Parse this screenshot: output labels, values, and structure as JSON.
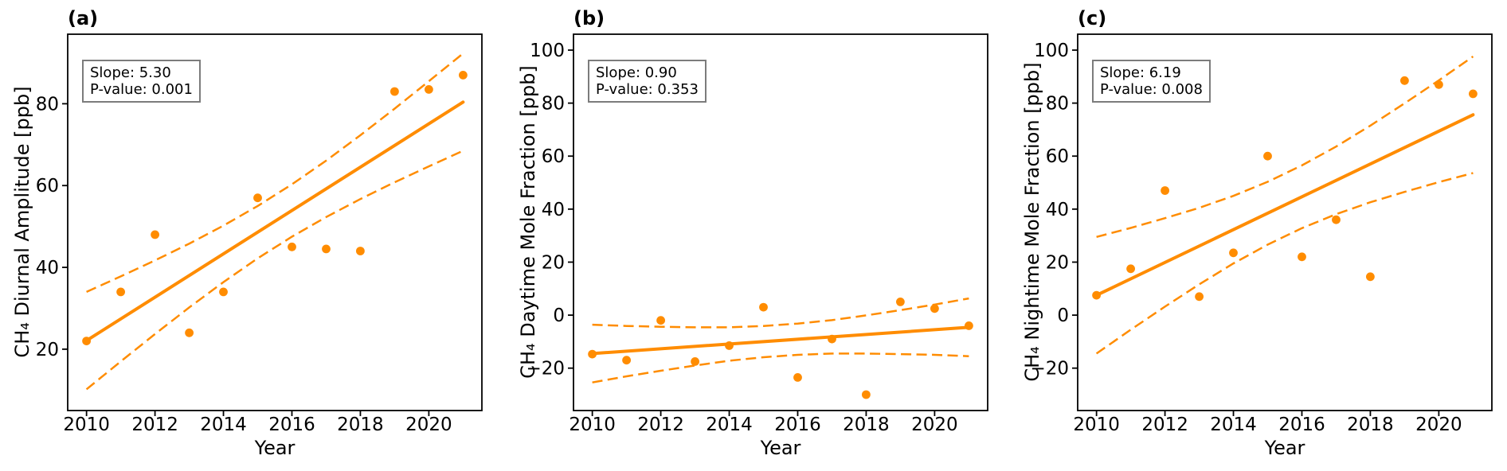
{
  "figure": {
    "background": "#ffffff",
    "accent_color": "#FF8C00",
    "text_color": "#000000",
    "axis_color": "#000000",
    "annotation_border_color": "#7c7c7c"
  },
  "chart_data": [
    {
      "type": "scatter",
      "panel_label": "(a)",
      "xlabel": "Year",
      "ylabel": "CH₄ Diurnal Amplitude [ppb]",
      "annotation": {
        "slope_label": "Slope: 5.30",
        "pvalue_label": "P-value: 0.001"
      },
      "x": [
        2010,
        2011,
        2012,
        2013,
        2014,
        2015,
        2016,
        2017,
        2018,
        2019,
        2020,
        2021
      ],
      "xticks": [
        2010,
        2012,
        2014,
        2016,
        2018,
        2020
      ],
      "yticks": [
        20,
        40,
        60,
        80
      ],
      "xlim": [
        2009.45,
        2021.55
      ],
      "ylim": [
        5,
        97
      ],
      "grid": false,
      "series": [
        {
          "name": "annual-values",
          "style": "scatter",
          "values": [
            22,
            34,
            48,
            24,
            34,
            57,
            45,
            44.5,
            44,
            83,
            83.5,
            87
          ]
        },
        {
          "name": "linear-fit",
          "style": "solid-line",
          "x": [
            2010,
            2021
          ],
          "values": [
            22.1,
            80.4
          ]
        },
        {
          "name": "ci-upper",
          "style": "dashed-line",
          "values": [
            34.0,
            37.8,
            41.7,
            45.8,
            50.2,
            55.0,
            60.3,
            66.1,
            72.3,
            78.8,
            85.5,
            92.3
          ]
        },
        {
          "name": "ci-lower",
          "style": "dashed-line",
          "values": [
            10.2,
            17.0,
            23.7,
            30.2,
            36.4,
            42.2,
            47.5,
            52.3,
            56.7,
            60.8,
            64.7,
            68.5
          ]
        }
      ]
    },
    {
      "type": "scatter",
      "panel_label": "(b)",
      "xlabel": "Year",
      "ylabel": "CH₄ Daytime Mole Fraction [ppb]",
      "annotation": {
        "slope_label": "Slope: 0.90",
        "pvalue_label": "P-value: 0.353"
      },
      "x": [
        2010,
        2011,
        2012,
        2013,
        2014,
        2015,
        2016,
        2017,
        2018,
        2019,
        2020,
        2021
      ],
      "xticks": [
        2010,
        2012,
        2014,
        2016,
        2018,
        2020
      ],
      "yticks": [
        -20,
        0,
        20,
        40,
        60,
        80,
        100
      ],
      "xlim": [
        2009.45,
        2021.55
      ],
      "ylim": [
        -36,
        106
      ],
      "grid": false,
      "series": [
        {
          "name": "annual-values",
          "style": "scatter",
          "values": [
            -14.7,
            -17,
            -2,
            -17.5,
            -11.5,
            3,
            -23.5,
            -9,
            -30,
            5,
            2.5,
            -4
          ]
        },
        {
          "name": "linear-fit",
          "style": "solid-line",
          "x": [
            2010,
            2021
          ],
          "values": [
            -14.5,
            -4.6
          ]
        },
        {
          "name": "ci-upper",
          "style": "dashed-line",
          "values": [
            -3.6,
            -4.1,
            -4.4,
            -4.6,
            -4.6,
            -4.1,
            -3.2,
            -1.9,
            -0.1,
            1.9,
            4.0,
            6.3
          ]
        },
        {
          "name": "ci-lower",
          "style": "dashed-line",
          "values": [
            -25.4,
            -23.1,
            -21.0,
            -19.0,
            -17.2,
            -15.9,
            -15.0,
            -14.5,
            -14.5,
            -14.7,
            -15.0,
            -15.5
          ]
        }
      ]
    },
    {
      "type": "scatter",
      "panel_label": "(c)",
      "xlabel": "Year",
      "ylabel": "CH₄ Nightime Mole Fraction [ppb]",
      "annotation": {
        "slope_label": "Slope: 6.19",
        "pvalue_label": "P-value: 0.008"
      },
      "x": [
        2010,
        2011,
        2012,
        2013,
        2014,
        2015,
        2016,
        2017,
        2018,
        2019,
        2020,
        2021
      ],
      "xticks": [
        2010,
        2012,
        2014,
        2016,
        2018,
        2020
      ],
      "yticks": [
        -20,
        0,
        20,
        40,
        60,
        80,
        100
      ],
      "xlim": [
        2009.45,
        2021.55
      ],
      "ylim": [
        -36,
        106
      ],
      "grid": false,
      "series": [
        {
          "name": "annual-values",
          "style": "scatter",
          "values": [
            7.5,
            17.5,
            47,
            7,
            23.5,
            60,
            22,
            36,
            14.5,
            88.5,
            87,
            83.5
          ]
        },
        {
          "name": "linear-fit",
          "style": "solid-line",
          "x": [
            2010,
            2021
          ],
          "values": [
            7.5,
            75.6
          ]
        },
        {
          "name": "ci-upper",
          "style": "dashed-line",
          "values": [
            29.5,
            32.9,
            36.6,
            40.5,
            45.0,
            50.3,
            56.5,
            63.6,
            71.5,
            79.9,
            88.6,
            97.6
          ]
        },
        {
          "name": "ci-lower",
          "style": "dashed-line",
          "values": [
            -14.5,
            -5.5,
            3.2,
            11.6,
            19.5,
            26.6,
            32.8,
            38.1,
            42.6,
            46.5,
            50.2,
            53.6
          ]
        }
      ]
    }
  ]
}
